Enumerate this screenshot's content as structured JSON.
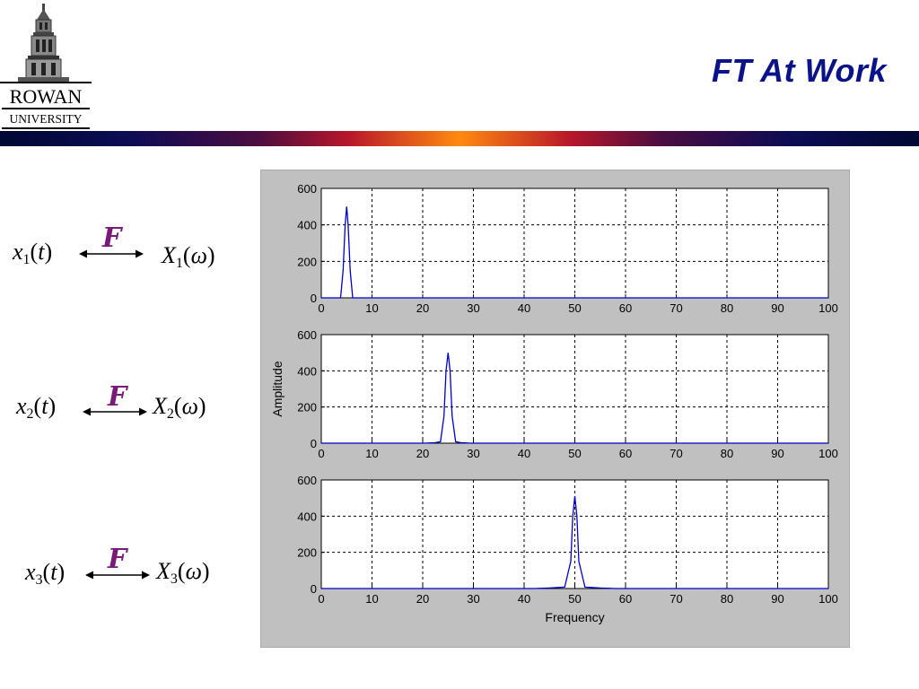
{
  "logo": {
    "name": "ROWAN",
    "subname": "UNIVERSITY"
  },
  "slide_title": "FT At Work",
  "equations": [
    {
      "lhs_var": "x",
      "lhs_sub": "1",
      "lhs_arg": "t",
      "transform_symbol": "F",
      "rhs_var": "X",
      "rhs_sub": "1",
      "rhs_arg": "ω"
    },
    {
      "lhs_var": "x",
      "lhs_sub": "2",
      "lhs_arg": "t",
      "transform_symbol": "F",
      "rhs_var": "X",
      "rhs_sub": "2",
      "rhs_arg": "ω"
    },
    {
      "lhs_var": "x",
      "lhs_sub": "3",
      "lhs_arg": "t",
      "transform_symbol": "F",
      "rhs_var": "X",
      "rhs_sub": "3",
      "rhs_arg": "ω"
    }
  ],
  "colors": {
    "title": "#0a1488",
    "transform_symbol": "#7a1a78",
    "line": "#0000cc",
    "figure_bg": "#c0c0c0"
  },
  "chart_data": [
    {
      "type": "line",
      "xlim": [
        0,
        100
      ],
      "ylim": [
        0,
        600
      ],
      "xticks": [
        0,
        10,
        20,
        30,
        40,
        50,
        60,
        70,
        80,
        90,
        100
      ],
      "yticks": [
        0,
        200,
        400,
        600
      ],
      "grid": true,
      "xlabel": "",
      "ylabel": "",
      "series": [
        {
          "x": [
            0,
            3.8,
            4.3,
            4.7,
            5.0,
            5.3,
            5.7,
            6.2,
            100
          ],
          "y": [
            0,
            0,
            150,
            400,
            500,
            400,
            150,
            0,
            0
          ]
        }
      ]
    },
    {
      "type": "line",
      "xlim": [
        0,
        100
      ],
      "ylim": [
        0,
        600
      ],
      "xticks": [
        0,
        10,
        20,
        30,
        40,
        50,
        60,
        70,
        80,
        90,
        100
      ],
      "yticks": [
        0,
        200,
        400,
        600
      ],
      "grid": true,
      "xlabel": "",
      "ylabel": "Amplitude",
      "series": [
        {
          "x": [
            0,
            20.5,
            22.5,
            23.5,
            24.2,
            24.6,
            25.0,
            25.4,
            25.8,
            26.5,
            27.5,
            29.5,
            100
          ],
          "y": [
            0,
            0,
            3,
            8,
            150,
            400,
            500,
            400,
            150,
            8,
            3,
            0,
            0
          ]
        }
      ]
    },
    {
      "type": "line",
      "xlim": [
        0,
        100
      ],
      "ylim": [
        0,
        600
      ],
      "xticks": [
        0,
        10,
        20,
        30,
        40,
        50,
        60,
        70,
        80,
        90,
        100
      ],
      "yticks": [
        0,
        200,
        400,
        600
      ],
      "grid": true,
      "xlabel": "Frequency",
      "ylabel": "",
      "series": [
        {
          "x": [
            0,
            42,
            45,
            48,
            49.2,
            49.6,
            50.0,
            50.4,
            50.8,
            52,
            55,
            58,
            100
          ],
          "y": [
            0,
            0,
            3,
            8,
            150,
            400,
            510,
            400,
            150,
            8,
            3,
            0,
            0
          ]
        }
      ]
    }
  ]
}
